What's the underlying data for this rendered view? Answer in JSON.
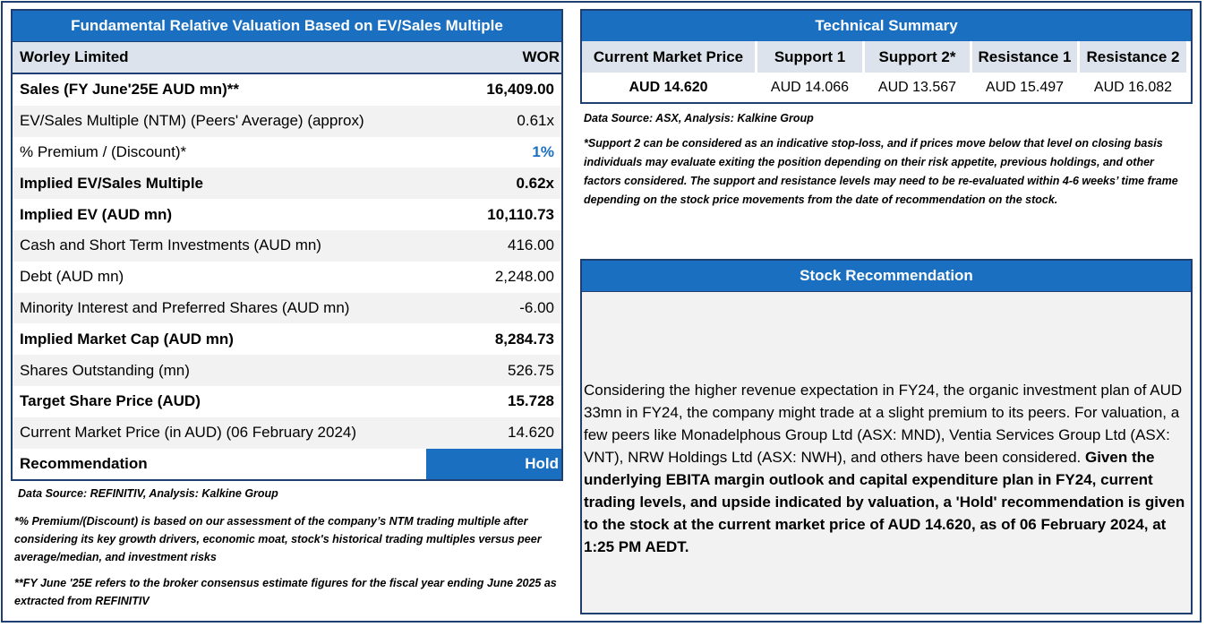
{
  "valuation": {
    "title": "Fundamental Relative Valuation Based on EV/Sales Multiple",
    "company": "Worley Limited",
    "ticker": "WOR",
    "rows": [
      {
        "label": "Sales (FY June'25E AUD mn)**",
        "value": "16,409.00"
      },
      {
        "label": "EV/Sales Multiple (NTM)  (Peers' Average) (approx)",
        "value": "0.61x"
      },
      {
        "label": "% Premium / (Discount)*",
        "value": "1%"
      },
      {
        "label": "Implied EV/Sales Multiple",
        "value": "0.62x"
      },
      {
        "label": "Implied EV (AUD mn)",
        "value": "10,110.73"
      },
      {
        "label": "Cash and Short Term Investments (AUD mn)",
        "value": "416.00"
      },
      {
        "label": "Debt (AUD mn)",
        "value": "2,248.00"
      },
      {
        "label": "Minority Interest and Preferred Shares (AUD mn)",
        "value": "-6.00"
      },
      {
        "label": "Implied Market Cap (AUD mn)",
        "value": "8,284.73"
      },
      {
        "label": "Shares Outstanding (mn)",
        "value": "526.75"
      },
      {
        "label": "Target Share Price (AUD)",
        "value": "15.728"
      },
      {
        "label": "Current Market Price (in AUD) (06 February 2024)",
        "value": "14.620"
      },
      {
        "label": "Recommendation",
        "value": "Hold"
      }
    ],
    "source": "Data Source: REFINITIV, Analysis: Kalkine Group",
    "note1": "*% Premium/(Discount) is based on our assessment of the company’s NTM trading multiple after considering its key growth drivers, economic moat, stock's historical trading multiples versus peer average/median, and investment risks",
    "note2": "**FY June '25E refers to the broker consensus estimate figures for the fiscal year ending June 2025  as extracted from REFINITIV"
  },
  "technical": {
    "title": "Technical Summary",
    "headers": [
      "Current Market Price",
      "Support 1",
      "Support 2*",
      "Resistance 1",
      "Resistance 2"
    ],
    "values": [
      "AUD 14.620",
      "AUD 14.066",
      "AUD 13.567",
      "AUD 15.497",
      "AUD 16.082"
    ],
    "source": "Data Source: ASX, Analysis: Kalkine Group",
    "note": "*Support 2 can be considered as an indicative stop-loss, and if prices move below that level on closing basis individuals may evaluate exiting the position depending on their risk appetite, previous holdings, and other factors considered. The support and resistance levels may need to be re-evaluated within 4-6 weeks’ time frame depending on the stock price movements from the date of recommendation on the stock."
  },
  "recommendation": {
    "title": "Stock Recommendation",
    "text_regular": "Considering the higher revenue expectation in FY24, the organic investment plan of AUD 33mn in FY24, the company might trade at a slight premium to its peers. For valuation, a few peers like Monadelphous Group Ltd (ASX: MND), Ventia Services Group Ltd (ASX: VNT), NRW Holdings Ltd (ASX: NWH), and others have been considered. ",
    "text_bold": "Given the underlying EBITA margin outlook and capital expenditure plan in FY24, current trading levels, and upside indicated by valuation, a 'Hold' recommendation is given to the stock at the current market price of AUD 14.620, as of 06 February 2024, at 1:25 PM AEDT."
  },
  "colors": {
    "accent": "#1a6fc0",
    "border": "#1f3f73",
    "header_bg": "#dde3ec",
    "shade": "#f2f2f2"
  }
}
